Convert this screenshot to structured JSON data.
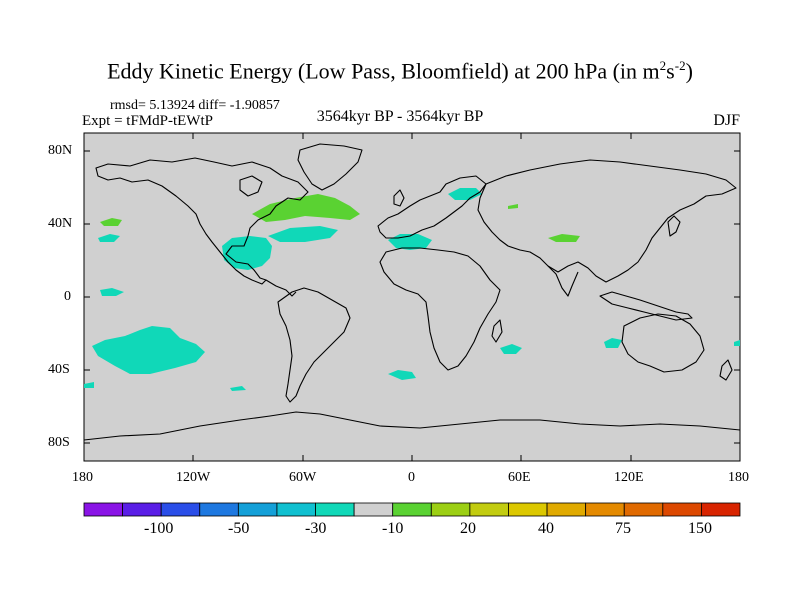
{
  "title": {
    "main": "Eddy Kinetic Energy (Low Pass, Bloomfield) at 200 hPa (in m",
    "sup1": "2",
    "mid": "s",
    "sup2": "-2",
    "end": ")"
  },
  "stats": {
    "rmsd": "rmsd= 5.13924 diff= -1.90857"
  },
  "experiment": "Expt = tFMdP-tEWtP",
  "period": "3564kyr BP - 3564kyr BP",
  "season": "DJF",
  "axes": {
    "lat_ticks": [
      "80N",
      "40N",
      "0",
      "40S",
      "80S"
    ],
    "lon_ticks": [
      "180",
      "120W",
      "60W",
      "0",
      "60E",
      "120E",
      "180"
    ]
  },
  "colorbar": {
    "labels": [
      "-100",
      "-50",
      "-30",
      "-10",
      "20",
      "40",
      "75",
      "150"
    ],
    "colors": [
      "#8a14e6",
      "#5a1ee6",
      "#2a4ee8",
      "#1e78e0",
      "#14a0d8",
      "#10c0d0",
      "#10d8b8",
      "#d0d0d0",
      "#5ad232",
      "#9ccf14",
      "#c2cc10",
      "#dcc800",
      "#e0aa00",
      "#e48a00",
      "#e06a00",
      "#dc4800",
      "#d82400"
    ]
  },
  "map": {
    "background": "#d0d0d0",
    "anomaly_colors": {
      "cyan": "#10d8b8",
      "green": "#5ad232"
    }
  }
}
